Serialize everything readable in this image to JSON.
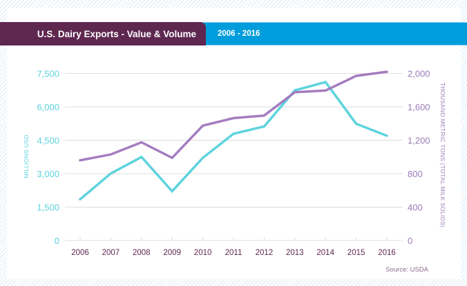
{
  "header": {
    "title": "U.S. Dairy Exports - Value & Volume",
    "range": "2006 - 2016"
  },
  "source": "Source: USDA",
  "colors": {
    "header_purple": "#5e2750",
    "header_blue": "#009ddc",
    "value_series": "#5dd3dd",
    "volume_series": "#a47cc0",
    "year_labels": "#5e2750"
  },
  "chart_data": {
    "type": "line",
    "title": "U.S. Dairy Exports - Value & Volume",
    "subtitle": "2006 - 2016",
    "x": [
      "2006",
      "2007",
      "2008",
      "2009",
      "2010",
      "2011",
      "2012",
      "2013",
      "2014",
      "2015",
      "2016"
    ],
    "xlabel": "",
    "ylabel": "MILLIONS USD",
    "ylabel_right": "THOUSAND METRIC TONS (TOTAL MILK SOLIDS)",
    "ylim": [
      0,
      7500
    ],
    "ylim_right": [
      0,
      2000
    ],
    "yticks": [
      "0",
      "1,500",
      "3,000",
      "4,500",
      "6,000",
      "7,500"
    ],
    "yticks_values": [
      0,
      1500,
      3000,
      4500,
      6000,
      7500
    ],
    "yticks_right": [
      "0",
      "400",
      "800",
      "1,200",
      "1,600",
      "2,000"
    ],
    "yticks_right_values": [
      0,
      400,
      800,
      1200,
      1600,
      2000
    ],
    "grid": true,
    "legend": "none",
    "series": [
      {
        "name": "Value (Millions USD)",
        "axis": "left",
        "color": "#5dd3dd",
        "values": [
          1850,
          3010,
          3750,
          2210,
          3710,
          4790,
          5120,
          6740,
          7110,
          5240,
          4700
        ]
      },
      {
        "name": "Volume (Thousand Metric Tons, Total Milk Solids)",
        "axis": "right",
        "color": "#a47cc0",
        "values": [
          960,
          1030,
          1175,
          990,
          1375,
          1465,
          1495,
          1775,
          1795,
          1970,
          2020
        ]
      }
    ],
    "annotations": [
      "Source: USDA"
    ]
  }
}
